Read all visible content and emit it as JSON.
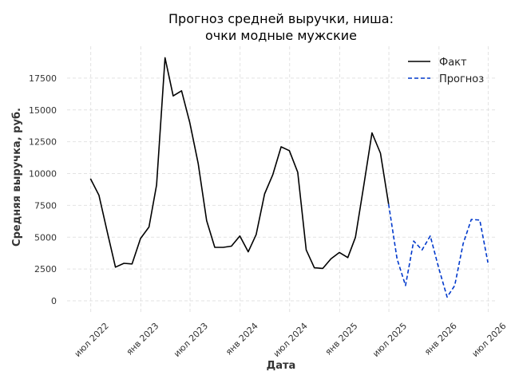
{
  "chart_data": {
    "type": "line",
    "title": [
      "Прогноз средней выручки, ниша:",
      "очки модные мужские"
    ],
    "xlabel": "Дата",
    "ylabel": "Средняя выручка, руб.",
    "xlim": [
      "2022-04-05",
      "2026-08-01"
    ],
    "ylim": [
      -1000,
      20000
    ],
    "x_ticks": [
      {
        "date": "2022-07-01",
        "label": "июл 2022"
      },
      {
        "date": "2023-01-01",
        "label": "янв 2023"
      },
      {
        "date": "2023-07-01",
        "label": "июл 2023"
      },
      {
        "date": "2024-01-01",
        "label": "янв 2024"
      },
      {
        "date": "2024-07-01",
        "label": "июл 2024"
      },
      {
        "date": "2025-01-01",
        "label": "янв 2025"
      },
      {
        "date": "2025-07-01",
        "label": "июл 2025"
      },
      {
        "date": "2026-01-01",
        "label": "янв 2026"
      },
      {
        "date": "2026-07-01",
        "label": "июл 2026"
      }
    ],
    "y_ticks": [
      0,
      2500,
      5000,
      7500,
      10000,
      12500,
      15000,
      17500
    ],
    "y_tick_labels": [
      "0",
      "2500",
      "5000",
      "7500",
      "10000",
      "12500",
      "15000",
      "17500"
    ],
    "grid": true,
    "legend_position": "top-right",
    "series": [
      {
        "name": "Факт",
        "style": "solid",
        "color": "#000000",
        "x": [
          "2022-06-30",
          "2022-07-31",
          "2022-08-31",
          "2022-09-30",
          "2022-10-31",
          "2022-11-30",
          "2022-12-31",
          "2023-01-31",
          "2023-02-28",
          "2023-03-31",
          "2023-04-30",
          "2023-05-31",
          "2023-06-30",
          "2023-07-31",
          "2023-08-31",
          "2023-09-30",
          "2023-10-31",
          "2023-11-30",
          "2023-12-31",
          "2024-01-31",
          "2024-02-29",
          "2024-03-31",
          "2024-04-30",
          "2024-05-31",
          "2024-06-30",
          "2024-07-31",
          "2024-08-31",
          "2024-09-30",
          "2024-10-31",
          "2024-11-30",
          "2024-12-31",
          "2025-01-31",
          "2025-02-28",
          "2025-03-31",
          "2025-04-30",
          "2025-05-31",
          "2025-06-30"
        ],
        "values": [
          9600,
          8300,
          5400,
          2650,
          2950,
          2900,
          4900,
          5800,
          9100,
          19100,
          16100,
          16500,
          14000,
          10800,
          6300,
          4200,
          4200,
          4300,
          5100,
          3850,
          5200,
          8400,
          9900,
          12100,
          11800,
          10100,
          4000,
          2600,
          2550,
          3300,
          3800,
          3400,
          5000,
          9100,
          13200,
          11600,
          7600
        ]
      },
      {
        "name": "Прогноз",
        "style": "dashed",
        "color": "#0039cc",
        "x": [
          "2025-06-30",
          "2025-07-31",
          "2025-08-31",
          "2025-09-30",
          "2025-10-31",
          "2025-11-30",
          "2025-12-31",
          "2026-01-31",
          "2026-02-28",
          "2026-03-31",
          "2026-04-30",
          "2026-05-31",
          "2026-06-30"
        ],
        "values": [
          7600,
          3300,
          1200,
          4700,
          4000,
          5100,
          2600,
          300,
          1200,
          4500,
          6400,
          6350,
          3000
        ]
      }
    ]
  }
}
